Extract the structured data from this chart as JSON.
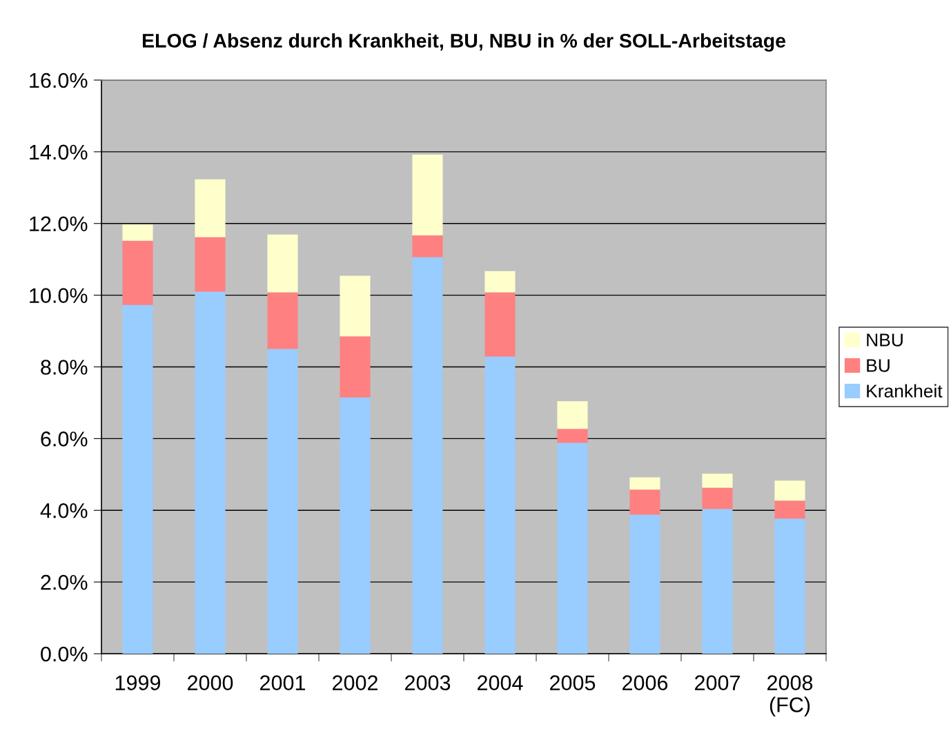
{
  "chart_data": {
    "type": "bar",
    "title": "ELOG / Absenz durch Krankheit, BU, NBU in % der SOLL-Arbeitstage",
    "categories": [
      "1999",
      "2000",
      "2001",
      "2002",
      "2003",
      "2004",
      "2005",
      "2006",
      "2007",
      "2008\n(FC)"
    ],
    "stacked": true,
    "series": [
      {
        "name": "Krankheit",
        "color": "#99ccff",
        "values": [
          9.73,
          10.1,
          8.5,
          7.15,
          11.06,
          8.29,
          5.88,
          3.88,
          4.04,
          3.77
        ]
      },
      {
        "name": "BU",
        "color": "#ff8080",
        "values": [
          1.79,
          1.52,
          1.58,
          1.7,
          0.61,
          1.79,
          0.39,
          0.7,
          0.59,
          0.5
        ]
      },
      {
        "name": "NBU",
        "color": "#ffffcc",
        "values": [
          0.45,
          1.61,
          1.61,
          1.69,
          2.25,
          0.59,
          0.77,
          0.34,
          0.39,
          0.56
        ]
      }
    ],
    "ylim": [
      0,
      16
    ],
    "yticks": [
      {
        "value": 0,
        "label": "0.0%"
      },
      {
        "value": 2,
        "label": "2.0%"
      },
      {
        "value": 4,
        "label": "4.0%"
      },
      {
        "value": 6,
        "label": "6.0%"
      },
      {
        "value": 8,
        "label": "8.0%"
      },
      {
        "value": 10,
        "label": "10.0%"
      },
      {
        "value": 12,
        "label": "12.0%"
      },
      {
        "value": 14,
        "label": "14.0%"
      },
      {
        "value": 16,
        "label": "16.0%"
      }
    ],
    "grid": "y",
    "legend": "right"
  }
}
